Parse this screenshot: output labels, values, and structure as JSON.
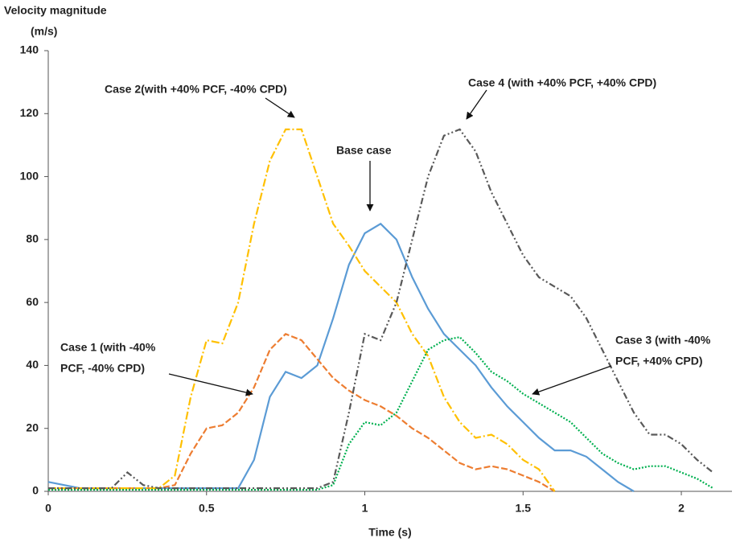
{
  "chart_data": {
    "type": "line",
    "y_label": [
      "Velocity magnitude",
      "(m/s)"
    ],
    "x_label": "Time (s)",
    "xlim": [
      0,
      2.16
    ],
    "xticks": [
      0,
      0.5,
      1,
      1.5,
      2
    ],
    "ylim": [
      0,
      140
    ],
    "yticks": [
      0,
      20,
      40,
      60,
      80,
      100,
      120,
      140
    ],
    "grid": false,
    "x": [
      0,
      0.05,
      0.1,
      0.15,
      0.2,
      0.25,
      0.3,
      0.35,
      0.4,
      0.45,
      0.5,
      0.55,
      0.6,
      0.65,
      0.7,
      0.75,
      0.8,
      0.85,
      0.9,
      0.95,
      1.0,
      1.05,
      1.1,
      1.15,
      1.2,
      1.25,
      1.3,
      1.35,
      1.4,
      1.45,
      1.5,
      1.55,
      1.6,
      1.65,
      1.7,
      1.75,
      1.8,
      1.85,
      1.9,
      1.95,
      2.0,
      2.05,
      2.1
    ],
    "series": [
      {
        "color": "#5b9bd5",
        "style": "solid",
        "values": [
          3,
          2,
          1,
          1,
          1,
          1,
          1,
          1,
          1,
          1,
          1,
          1,
          1,
          10,
          30,
          38,
          36,
          40,
          55,
          72,
          82,
          85,
          80,
          68,
          58,
          50,
          45,
          40,
          33,
          27,
          22,
          17,
          13,
          13,
          11,
          7,
          3,
          0,
          null,
          null,
          null,
          null,
          null
        ]
      },
      {
        "color": "#ed7d31",
        "style": "dashed",
        "values": [
          1,
          1,
          1,
          1,
          1,
          1,
          1,
          1,
          2,
          12,
          20,
          21,
          25,
          33,
          45,
          50,
          48,
          42,
          36,
          32,
          29,
          27,
          24,
          20,
          17,
          13,
          9,
          7,
          8,
          7,
          5,
          3,
          0,
          null,
          null,
          null,
          null,
          null,
          null,
          null,
          null,
          null,
          null
        ]
      },
      {
        "color": "#ffc000",
        "style": "dashdot",
        "values": [
          1,
          1,
          1,
          1,
          1,
          1,
          1,
          1,
          5,
          30,
          48,
          47,
          60,
          85,
          105,
          115,
          115,
          100,
          85,
          78,
          70,
          65,
          60,
          50,
          43,
          30,
          22,
          17,
          18,
          15,
          10,
          7,
          0,
          null,
          null,
          null,
          null,
          null,
          null,
          null,
          null,
          null,
          null
        ]
      },
      {
        "color": "#00b050",
        "style": "dotted",
        "values": [
          0.5,
          0.5,
          0.5,
          0.5,
          0.5,
          0.5,
          0.5,
          0.5,
          0.5,
          0.5,
          0.5,
          0.5,
          0.5,
          0.5,
          0.5,
          0.5,
          0.5,
          0.5,
          2,
          15,
          22,
          21,
          25,
          35,
          45,
          48,
          49,
          44,
          38,
          35,
          31,
          28,
          25,
          22,
          17,
          12,
          9,
          7,
          8,
          8,
          6,
          4,
          1
        ]
      },
      {
        "color": "#595959",
        "style": "dashdotdot",
        "values": [
          1,
          1,
          1,
          1,
          1,
          6,
          2,
          1,
          1,
          1,
          1,
          1,
          1,
          1,
          1,
          1,
          1,
          1,
          3,
          25,
          50,
          48,
          60,
          80,
          100,
          113,
          115,
          108,
          95,
          85,
          75,
          68,
          65,
          62,
          55,
          45,
          35,
          25,
          18,
          18,
          15,
          10,
          6
        ]
      }
    ],
    "annotations": [
      {
        "text": [
          "Case  2(with +40% PCF, -40% CPD)"
        ]
      },
      {
        "text": [
          "Base case"
        ]
      },
      {
        "text": [
          "Case  4 (with +40% PCF, +40% CPD)"
        ]
      },
      {
        "text": [
          "Case 1 (with -40%",
          "PCF, -40% CPD)"
        ]
      },
      {
        "text": [
          "Case  3 (with -40%",
          "PCF, +40% CPD)"
        ]
      }
    ]
  }
}
